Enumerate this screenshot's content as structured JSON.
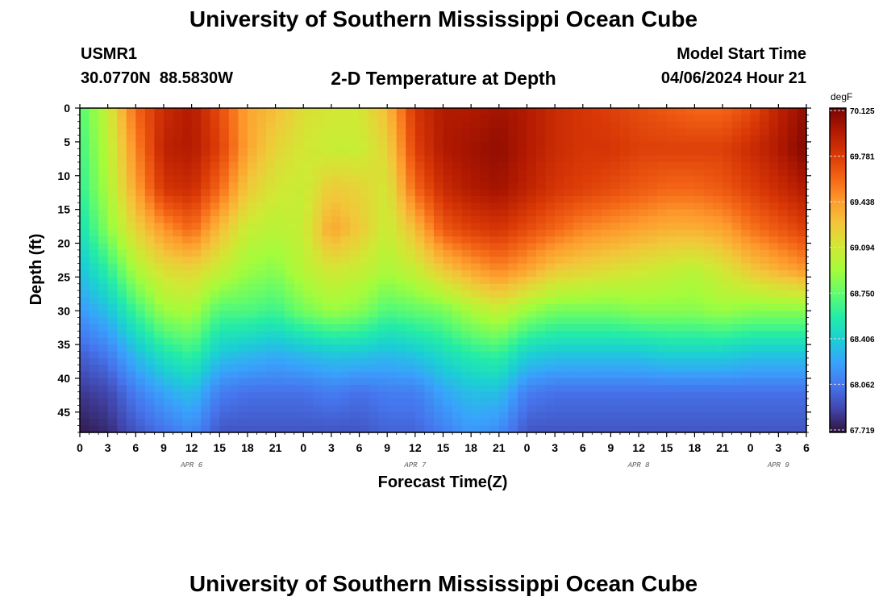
{
  "header": {
    "title": "University of Southern Mississippi Ocean Cube",
    "station_id": "USMR1",
    "station_coords": "30.0770N  88.5830W",
    "chart_title": "2-D Temperature at Depth",
    "model_start_label": "Model Start Time",
    "model_start_value": "04/06/2024 Hour 21"
  },
  "footer": {
    "title": "University of Southern Mississippi Ocean Cube"
  },
  "chart_data": {
    "type": "heatmap",
    "title": "2-D Temperature at Depth",
    "xlabel": "Forecast Time(Z)",
    "ylabel": "Depth (ft)",
    "x_ticks": [
      "0",
      "3",
      "6",
      "9",
      "12",
      "15",
      "18",
      "21",
      "0",
      "3",
      "6",
      "9",
      "12",
      "15",
      "18",
      "21",
      "0",
      "3",
      "6",
      "9",
      "12",
      "15",
      "18",
      "21",
      "0",
      "3",
      "6"
    ],
    "x_hours": [
      0,
      3,
      6,
      9,
      12,
      15,
      18,
      21,
      24,
      27,
      30,
      33,
      36,
      39,
      42,
      45,
      48,
      51,
      54,
      57,
      60,
      63,
      66,
      69,
      72,
      75,
      78
    ],
    "day_labels": [
      {
        "label": "APR 6",
        "hour": 12
      },
      {
        "label": "APR 7",
        "hour": 36
      },
      {
        "label": "APR 8",
        "hour": 60
      },
      {
        "label": "APR 9",
        "hour": 75
      }
    ],
    "y_ticks": [
      0,
      5,
      10,
      15,
      20,
      25,
      30,
      35,
      40,
      45
    ],
    "ylim": [
      0,
      48
    ],
    "xlim": [
      0,
      78
    ],
    "colorbar": {
      "unit": "degF",
      "min": 67.719,
      "max": 70.125,
      "ticks": [
        "70.125",
        "69.781",
        "69.438",
        "69.094",
        "68.750",
        "68.406",
        "68.062",
        "67.719"
      ],
      "colors": [
        "#30123b",
        "#4145ab",
        "#4675ed",
        "#39a2fc",
        "#1bcfd4",
        "#24eca6",
        "#61fc6c",
        "#a4fc3b",
        "#d1e834",
        "#f3c63a",
        "#fe9b2d",
        "#f36315",
        "#d93806",
        "#b11901",
        "#7a0402"
      ]
    },
    "series": [
      {
        "hour": 0,
        "values": [
          68.7,
          68.65,
          68.6,
          68.5,
          68.35,
          68.2,
          68.0,
          67.85,
          67.75
        ]
      },
      {
        "hour": 3,
        "values": [
          69.05,
          69.0,
          68.95,
          68.85,
          68.6,
          68.35,
          68.1,
          67.9,
          67.8
        ]
      },
      {
        "hour": 6,
        "values": [
          69.6,
          69.5,
          69.4,
          69.2,
          68.95,
          68.65,
          68.35,
          68.1,
          67.95
        ]
      },
      {
        "hour": 9,
        "values": [
          69.85,
          69.9,
          69.8,
          69.45,
          69.15,
          68.9,
          68.55,
          68.25,
          68.05
        ]
      },
      {
        "hour": 12,
        "values": [
          69.95,
          69.95,
          69.85,
          69.6,
          69.2,
          68.95,
          68.65,
          68.35,
          68.15
        ]
      },
      {
        "hour": 15,
        "values": [
          69.7,
          69.75,
          69.6,
          69.3,
          69.05,
          68.7,
          68.4,
          68.1,
          67.95
        ]
      },
      {
        "hour": 18,
        "values": [
          69.4,
          69.4,
          69.25,
          69.05,
          68.9,
          68.7,
          68.35,
          68.05,
          67.95
        ]
      },
      {
        "hour": 21,
        "values": [
          69.3,
          69.2,
          69.1,
          69.0,
          68.85,
          68.65,
          68.3,
          68.05,
          67.95
        ]
      },
      {
        "hour": 24,
        "values": [
          69.15,
          69.1,
          69.05,
          69.05,
          69.0,
          68.8,
          68.35,
          68.05,
          67.95
        ]
      },
      {
        "hour": 27,
        "values": [
          69.1,
          69.05,
          69.25,
          69.4,
          69.1,
          68.9,
          68.4,
          68.1,
          67.95
        ]
      },
      {
        "hour": 30,
        "values": [
          69.1,
          69.05,
          69.2,
          69.25,
          69.05,
          68.85,
          68.4,
          68.05,
          67.95
        ]
      },
      {
        "hour": 33,
        "values": [
          69.3,
          69.2,
          69.1,
          69.05,
          68.95,
          68.7,
          68.35,
          68.1,
          68.0
        ]
      },
      {
        "hour": 36,
        "values": [
          69.8,
          69.75,
          69.6,
          69.3,
          69.05,
          68.75,
          68.4,
          68.1,
          68.0
        ]
      },
      {
        "hour": 39,
        "values": [
          69.95,
          69.95,
          69.85,
          69.65,
          69.25,
          68.8,
          68.5,
          68.25,
          68.1
        ]
      },
      {
        "hour": 42,
        "values": [
          69.95,
          70.0,
          69.95,
          69.75,
          69.4,
          68.95,
          68.6,
          68.35,
          68.2
        ]
      },
      {
        "hour": 45,
        "values": [
          70.0,
          70.05,
          70.0,
          69.8,
          69.5,
          69.05,
          68.65,
          68.35,
          68.15
        ]
      },
      {
        "hour": 48,
        "values": [
          69.95,
          69.95,
          69.9,
          69.7,
          69.4,
          68.9,
          68.45,
          68.1,
          67.95
        ]
      },
      {
        "hour": 51,
        "values": [
          69.85,
          69.85,
          69.8,
          69.6,
          69.25,
          68.8,
          68.4,
          68.05,
          67.95
        ]
      },
      {
        "hour": 54,
        "values": [
          69.8,
          69.8,
          69.75,
          69.5,
          69.2,
          68.8,
          68.4,
          68.05,
          67.95
        ]
      },
      {
        "hour": 57,
        "values": [
          69.75,
          69.8,
          69.7,
          69.45,
          69.15,
          68.8,
          68.4,
          68.05,
          67.95
        ]
      },
      {
        "hour": 60,
        "values": [
          69.7,
          69.75,
          69.65,
          69.4,
          69.1,
          68.85,
          68.4,
          68.05,
          67.95
        ]
      },
      {
        "hour": 63,
        "values": [
          69.65,
          69.75,
          69.6,
          69.35,
          69.05,
          68.85,
          68.45,
          68.05,
          67.95
        ]
      },
      {
        "hour": 66,
        "values": [
          69.6,
          69.75,
          69.6,
          69.35,
          69.0,
          68.85,
          68.45,
          68.05,
          67.95
        ]
      },
      {
        "hour": 69,
        "values": [
          69.6,
          69.75,
          69.65,
          69.4,
          69.1,
          68.9,
          68.45,
          68.05,
          67.95
        ]
      },
      {
        "hour": 72,
        "values": [
          69.7,
          69.85,
          69.75,
          69.55,
          69.25,
          68.85,
          68.4,
          68.05,
          67.95
        ]
      },
      {
        "hour": 75,
        "values": [
          69.9,
          69.95,
          69.85,
          69.65,
          69.35,
          68.85,
          68.4,
          68.05,
          67.95
        ]
      },
      {
        "hour": 78,
        "values": [
          70.05,
          70.1,
          69.95,
          69.75,
          69.45,
          68.85,
          68.4,
          68.05,
          67.95
        ]
      }
    ],
    "depths": [
      0,
      6,
      12,
      18,
      24,
      30,
      36,
      42,
      48
    ]
  }
}
